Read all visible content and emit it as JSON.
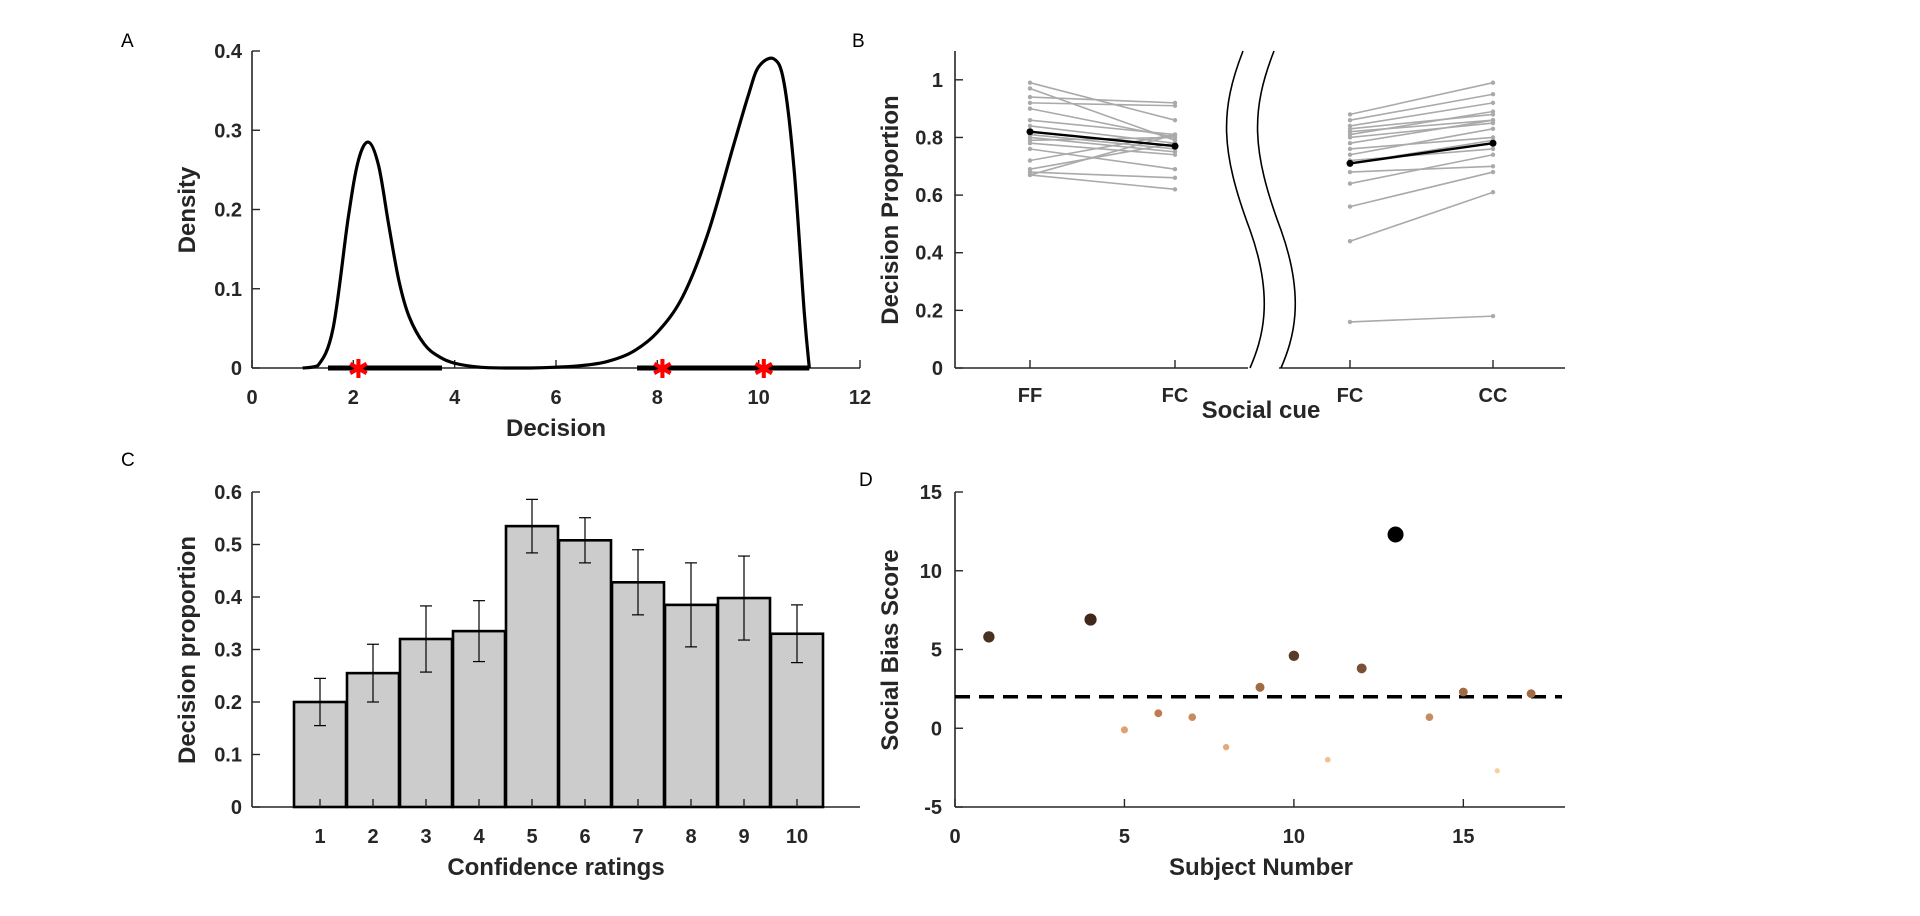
{
  "chart_data": [
    {
      "panel": "A",
      "type": "line",
      "xlabel": "Decision",
      "ylabel": "Density",
      "xlim": [
        0,
        12
      ],
      "ylim": [
        0,
        0.4
      ],
      "xticks": [
        "0",
        "2",
        "4",
        "6",
        "8",
        "10",
        "12"
      ],
      "yticks": [
        "0",
        "0.1",
        "0.2",
        "0.3",
        "0.4"
      ],
      "density_curve": {
        "x": [
          1.0,
          1.3,
          1.6,
          1.9,
          2.1,
          2.3,
          2.5,
          2.7,
          2.9,
          3.1,
          3.4,
          3.7,
          4.0,
          4.5,
          5.0,
          5.5,
          6.0,
          6.5,
          7.0,
          7.5,
          8.0,
          8.5,
          9.0,
          9.5,
          9.8,
          10.0,
          10.3,
          10.5,
          10.7,
          10.9,
          11.0
        ],
        "y": [
          0.0,
          0.003,
          0.05,
          0.19,
          0.262,
          0.285,
          0.255,
          0.18,
          0.11,
          0.065,
          0.03,
          0.014,
          0.006,
          0.001,
          0.0,
          0.0,
          0.001,
          0.003,
          0.008,
          0.02,
          0.045,
          0.09,
          0.17,
          0.28,
          0.345,
          0.38,
          0.39,
          0.36,
          0.25,
          0.07,
          0.0
        ]
      },
      "intervals": [
        [
          1.5,
          3.75
        ],
        [
          7.6,
          11.0
        ]
      ],
      "markers_x": [
        2.1,
        8.1,
        10.1
      ],
      "marker_symbol": "✱",
      "marker_color": "#ff0000"
    },
    {
      "panel": "B",
      "type": "line",
      "xlabel": "Social cue",
      "ylabel": "Decision Proportion",
      "ylim": [
        0,
        1.1
      ],
      "yticks": [
        "0",
        "0.2",
        "0.4",
        "0.6",
        "0.8",
        "1"
      ],
      "groups": [
        {
          "categories": [
            "FF",
            "FC"
          ],
          "subjects": [
            [
              0.99,
              0.86
            ],
            [
              0.97,
              0.79
            ],
            [
              0.94,
              0.92
            ],
            [
              0.92,
              0.91
            ],
            [
              0.9,
              0.8
            ],
            [
              0.86,
              0.81
            ],
            [
              0.84,
              0.78
            ],
            [
              0.81,
              0.76
            ],
            [
              0.79,
              0.8
            ],
            [
              0.78,
              0.74
            ],
            [
              0.76,
              0.69
            ],
            [
              0.72,
              0.81
            ],
            [
              0.69,
              0.78
            ],
            [
              0.68,
              0.66
            ],
            [
              0.67,
              0.62
            ],
            [
              0.8,
              0.75
            ],
            [
              0.67,
              0.81
            ]
          ],
          "mean": [
            0.82,
            0.77
          ]
        },
        {
          "categories": [
            "FC",
            "CC"
          ],
          "subjects": [
            [
              0.88,
              0.99
            ],
            [
              0.86,
              0.95
            ],
            [
              0.84,
              0.92
            ],
            [
              0.83,
              0.88
            ],
            [
              0.82,
              0.86
            ],
            [
              0.8,
              0.85
            ],
            [
              0.78,
              0.86
            ],
            [
              0.76,
              0.8
            ],
            [
              0.74,
              0.83
            ],
            [
              0.72,
              0.76
            ],
            [
              0.68,
              0.7
            ],
            [
              0.64,
              0.74
            ],
            [
              0.56,
              0.68
            ],
            [
              0.44,
              0.61
            ],
            [
              0.16,
              0.18
            ],
            [
              0.81,
              0.89
            ],
            [
              0.71,
              0.79
            ]
          ],
          "mean": [
            0.71,
            0.78
          ]
        }
      ],
      "subject_color": "#aaaaaa",
      "mean_color": "#000000"
    },
    {
      "panel": "C",
      "type": "bar",
      "xlabel": "Confidence ratings",
      "ylabel": "Decision proportion",
      "categories": [
        "1",
        "2",
        "3",
        "4",
        "5",
        "6",
        "7",
        "8",
        "9",
        "10"
      ],
      "values": [
        0.2,
        0.255,
        0.32,
        0.335,
        0.535,
        0.508,
        0.428,
        0.385,
        0.398,
        0.33
      ],
      "errors": [
        0.045,
        0.055,
        0.063,
        0.058,
        0.051,
        0.043,
        0.062,
        0.08,
        0.08,
        0.055
      ],
      "ylim": [
        0,
        0.6
      ],
      "yticks": [
        "0",
        "0.1",
        "0.2",
        "0.3",
        "0.4",
        "0.5",
        "0.6"
      ],
      "bar_color": "#cccccc"
    },
    {
      "panel": "D",
      "type": "scatter",
      "xlabel": "Subject Number",
      "ylabel": "Social Bias Score",
      "xlim": [
        0,
        18
      ],
      "ylim": [
        -5,
        15
      ],
      "xticks": [
        "0",
        "5",
        "10",
        "15"
      ],
      "yticks": [
        "-5",
        "0",
        "5",
        "10",
        "15"
      ],
      "threshold": 2,
      "points": [
        {
          "x": 1,
          "y": 5.8,
          "color": "#4a3023"
        },
        {
          "x": 4,
          "y": 6.9,
          "color": "#40271c"
        },
        {
          "x": 5,
          "y": -0.1,
          "color": "#e0a070"
        },
        {
          "x": 6,
          "y": 0.95,
          "color": "#c07a52"
        },
        {
          "x": 7,
          "y": 0.7,
          "color": "#c88a60"
        },
        {
          "x": 8,
          "y": -1.2,
          "color": "#e8a878"
        },
        {
          "x": 9,
          "y": 2.6,
          "color": "#a06a45"
        },
        {
          "x": 10,
          "y": 4.6,
          "color": "#5a3a28"
        },
        {
          "x": 11,
          "y": -2.0,
          "color": "#f2c090"
        },
        {
          "x": 12,
          "y": 3.8,
          "color": "#7a5035"
        },
        {
          "x": 13,
          "y": 12.3,
          "color": "#000000"
        },
        {
          "x": 14,
          "y": 0.7,
          "color": "#c88a60"
        },
        {
          "x": 15,
          "y": 2.3,
          "color": "#a06a45"
        },
        {
          "x": 16,
          "y": -2.7,
          "color": "#f7cf9e"
        },
        {
          "x": 17,
          "y": 2.2,
          "color": "#a06a45"
        }
      ]
    }
  ],
  "panels": {
    "A": {
      "letter": "A"
    },
    "B": {
      "letter": "B"
    },
    "C": {
      "letter": "C"
    },
    "D": {
      "letter": "D"
    }
  }
}
